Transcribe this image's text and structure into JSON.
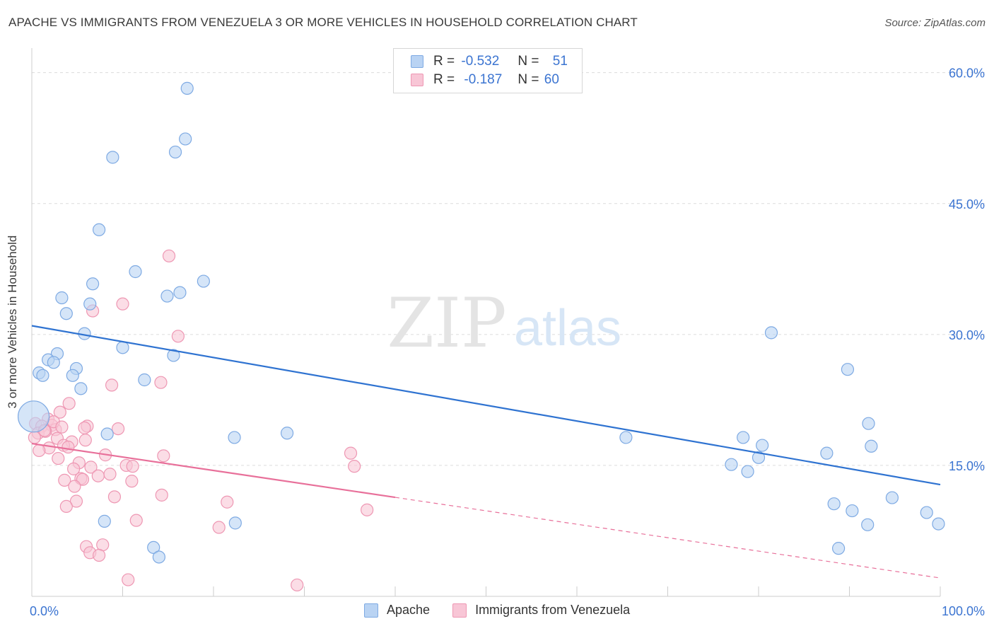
{
  "title": "APACHE VS IMMIGRANTS FROM VENEZUELA 3 OR MORE VEHICLES IN HOUSEHOLD CORRELATION CHART",
  "source": "Source: ZipAtlas.com",
  "watermark": {
    "zip": "ZIP",
    "atlas": "atlas"
  },
  "legend": {
    "rows": [
      {
        "r_label": "R =",
        "r_value": "-0.532",
        "n_label": "N =",
        "n_value": "51"
      },
      {
        "r_label": "R =",
        "r_value": "-0.187",
        "n_label": "N =",
        "n_value": "60"
      }
    ]
  },
  "bottom_legend": {
    "apache": "Apache",
    "venezuela": "Immigrants from Venezuela"
  },
  "colors": {
    "apache_fill": "#b9d3f3",
    "apache_stroke": "#7eaae3",
    "apache_line": "#2f73d1",
    "venezuela_fill": "#f8c6d6",
    "venezuela_stroke": "#ee97b3",
    "venezuela_line": "#e8709a",
    "axis_text": "#3b74d1"
  },
  "chart_data": {
    "type": "scatter",
    "title": "APACHE VS IMMIGRANTS FROM VENEZUELA 3 OR MORE VEHICLES IN HOUSEHOLD CORRELATION CHART",
    "xlabel": "",
    "ylabel": "3 or more Vehicles in Household",
    "xlim": [
      0,
      100
    ],
    "ylim": [
      0,
      62
    ],
    "x_tick_labels": [
      "0.0%",
      "100.0%"
    ],
    "y_ticks": [
      15,
      30,
      45,
      60
    ],
    "y_tick_labels": [
      "15.0%",
      "30.0%",
      "45.0%",
      "60.0%"
    ],
    "series": [
      {
        "name": "Apache",
        "r": -0.532,
        "n": 51,
        "trend": {
          "x0": 0,
          "y0": 31.0,
          "x1": 100,
          "y1": 12.8,
          "solid_to": 100
        },
        "points": [
          {
            "x": 17.1,
            "y": 58.2
          },
          {
            "x": 16.9,
            "y": 52.4
          },
          {
            "x": 15.8,
            "y": 50.9
          },
          {
            "x": 8.9,
            "y": 50.3
          },
          {
            "x": 7.4,
            "y": 42.0
          },
          {
            "x": 11.4,
            "y": 37.2
          },
          {
            "x": 6.7,
            "y": 35.8
          },
          {
            "x": 18.9,
            "y": 36.1
          },
          {
            "x": 16.3,
            "y": 34.8
          },
          {
            "x": 14.9,
            "y": 34.4
          },
          {
            "x": 3.3,
            "y": 34.2
          },
          {
            "x": 6.4,
            "y": 33.5
          },
          {
            "x": 3.8,
            "y": 32.4
          },
          {
            "x": 5.8,
            "y": 30.1
          },
          {
            "x": 10.0,
            "y": 28.5
          },
          {
            "x": 2.8,
            "y": 27.8
          },
          {
            "x": 1.8,
            "y": 27.1
          },
          {
            "x": 2.4,
            "y": 26.8
          },
          {
            "x": 15.6,
            "y": 27.6
          },
          {
            "x": 4.9,
            "y": 26.1
          },
          {
            "x": 0.8,
            "y": 25.6
          },
          {
            "x": 4.5,
            "y": 25.3
          },
          {
            "x": 12.4,
            "y": 24.8
          },
          {
            "x": 1.2,
            "y": 25.3
          },
          {
            "x": 5.4,
            "y": 23.8
          },
          {
            "x": 0.2,
            "y": 20.6
          },
          {
            "x": 8.3,
            "y": 18.6
          },
          {
            "x": 22.3,
            "y": 18.2
          },
          {
            "x": 28.1,
            "y": 18.7
          },
          {
            "x": 65.4,
            "y": 18.2
          },
          {
            "x": 78.3,
            "y": 18.2
          },
          {
            "x": 80.4,
            "y": 17.3
          },
          {
            "x": 80.0,
            "y": 15.9
          },
          {
            "x": 77.0,
            "y": 15.1
          },
          {
            "x": 78.8,
            "y": 14.3
          },
          {
            "x": 81.4,
            "y": 30.2
          },
          {
            "x": 89.8,
            "y": 26.0
          },
          {
            "x": 92.1,
            "y": 19.8
          },
          {
            "x": 92.4,
            "y": 17.2
          },
          {
            "x": 87.5,
            "y": 16.4
          },
          {
            "x": 94.7,
            "y": 11.3
          },
          {
            "x": 88.3,
            "y": 10.6
          },
          {
            "x": 90.3,
            "y": 9.8
          },
          {
            "x": 92.0,
            "y": 8.2
          },
          {
            "x": 98.5,
            "y": 9.6
          },
          {
            "x": 99.8,
            "y": 8.3
          },
          {
            "x": 88.8,
            "y": 5.5
          },
          {
            "x": 8.0,
            "y": 8.6
          },
          {
            "x": 22.4,
            "y": 8.4
          },
          {
            "x": 13.4,
            "y": 5.6
          },
          {
            "x": 14.0,
            "y": 4.5
          }
        ]
      },
      {
        "name": "Immigrants from Venezuela",
        "r": -0.187,
        "n": 60,
        "trend": {
          "x0": 0,
          "y0": 17.5,
          "x1": 100,
          "y1": 2.1,
          "solid_to": 40
        },
        "points": [
          {
            "x": 15.1,
            "y": 39.0
          },
          {
            "x": 10.0,
            "y": 33.5
          },
          {
            "x": 6.7,
            "y": 32.7
          },
          {
            "x": 16.1,
            "y": 29.8
          },
          {
            "x": 8.8,
            "y": 24.2
          },
          {
            "x": 14.2,
            "y": 24.5
          },
          {
            "x": 4.1,
            "y": 22.1
          },
          {
            "x": 3.1,
            "y": 21.1
          },
          {
            "x": 1.8,
            "y": 20.3
          },
          {
            "x": 0.4,
            "y": 19.8
          },
          {
            "x": 1.1,
            "y": 19.5
          },
          {
            "x": 2.2,
            "y": 19.6
          },
          {
            "x": 2.6,
            "y": 19.1
          },
          {
            "x": 0.7,
            "y": 18.7
          },
          {
            "x": 1.5,
            "y": 18.9
          },
          {
            "x": 0.3,
            "y": 18.2
          },
          {
            "x": 6.1,
            "y": 19.5
          },
          {
            "x": 5.8,
            "y": 19.3
          },
          {
            "x": 9.5,
            "y": 19.2
          },
          {
            "x": 2.8,
            "y": 18.1
          },
          {
            "x": 4.4,
            "y": 17.7
          },
          {
            "x": 3.5,
            "y": 17.3
          },
          {
            "x": 4.0,
            "y": 17.1
          },
          {
            "x": 1.9,
            "y": 17.0
          },
          {
            "x": 0.8,
            "y": 16.7
          },
          {
            "x": 8.1,
            "y": 16.2
          },
          {
            "x": 2.9,
            "y": 15.8
          },
          {
            "x": 5.2,
            "y": 15.3
          },
          {
            "x": 10.4,
            "y": 15.0
          },
          {
            "x": 6.5,
            "y": 14.8
          },
          {
            "x": 4.6,
            "y": 14.6
          },
          {
            "x": 11.1,
            "y": 14.9
          },
          {
            "x": 14.5,
            "y": 16.1
          },
          {
            "x": 8.6,
            "y": 14.0
          },
          {
            "x": 7.3,
            "y": 13.8
          },
          {
            "x": 5.4,
            "y": 13.5
          },
          {
            "x": 3.6,
            "y": 13.3
          },
          {
            "x": 5.6,
            "y": 13.4
          },
          {
            "x": 11.0,
            "y": 13.2
          },
          {
            "x": 4.7,
            "y": 12.6
          },
          {
            "x": 9.1,
            "y": 11.4
          },
          {
            "x": 14.3,
            "y": 11.6
          },
          {
            "x": 4.9,
            "y": 10.9
          },
          {
            "x": 3.8,
            "y": 10.3
          },
          {
            "x": 21.5,
            "y": 10.8
          },
          {
            "x": 35.1,
            "y": 16.4
          },
          {
            "x": 35.5,
            "y": 14.9
          },
          {
            "x": 36.9,
            "y": 9.9
          },
          {
            "x": 11.5,
            "y": 8.7
          },
          {
            "x": 20.6,
            "y": 7.9
          },
          {
            "x": 6.0,
            "y": 5.7
          },
          {
            "x": 7.8,
            "y": 5.9
          },
          {
            "x": 6.4,
            "y": 5.0
          },
          {
            "x": 7.4,
            "y": 4.7
          },
          {
            "x": 10.6,
            "y": 1.9
          },
          {
            "x": 29.2,
            "y": 1.3
          },
          {
            "x": 1.4,
            "y": 19.0
          },
          {
            "x": 2.4,
            "y": 20.0
          },
          {
            "x": 5.9,
            "y": 17.9
          },
          {
            "x": 3.3,
            "y": 19.4
          }
        ]
      }
    ]
  }
}
